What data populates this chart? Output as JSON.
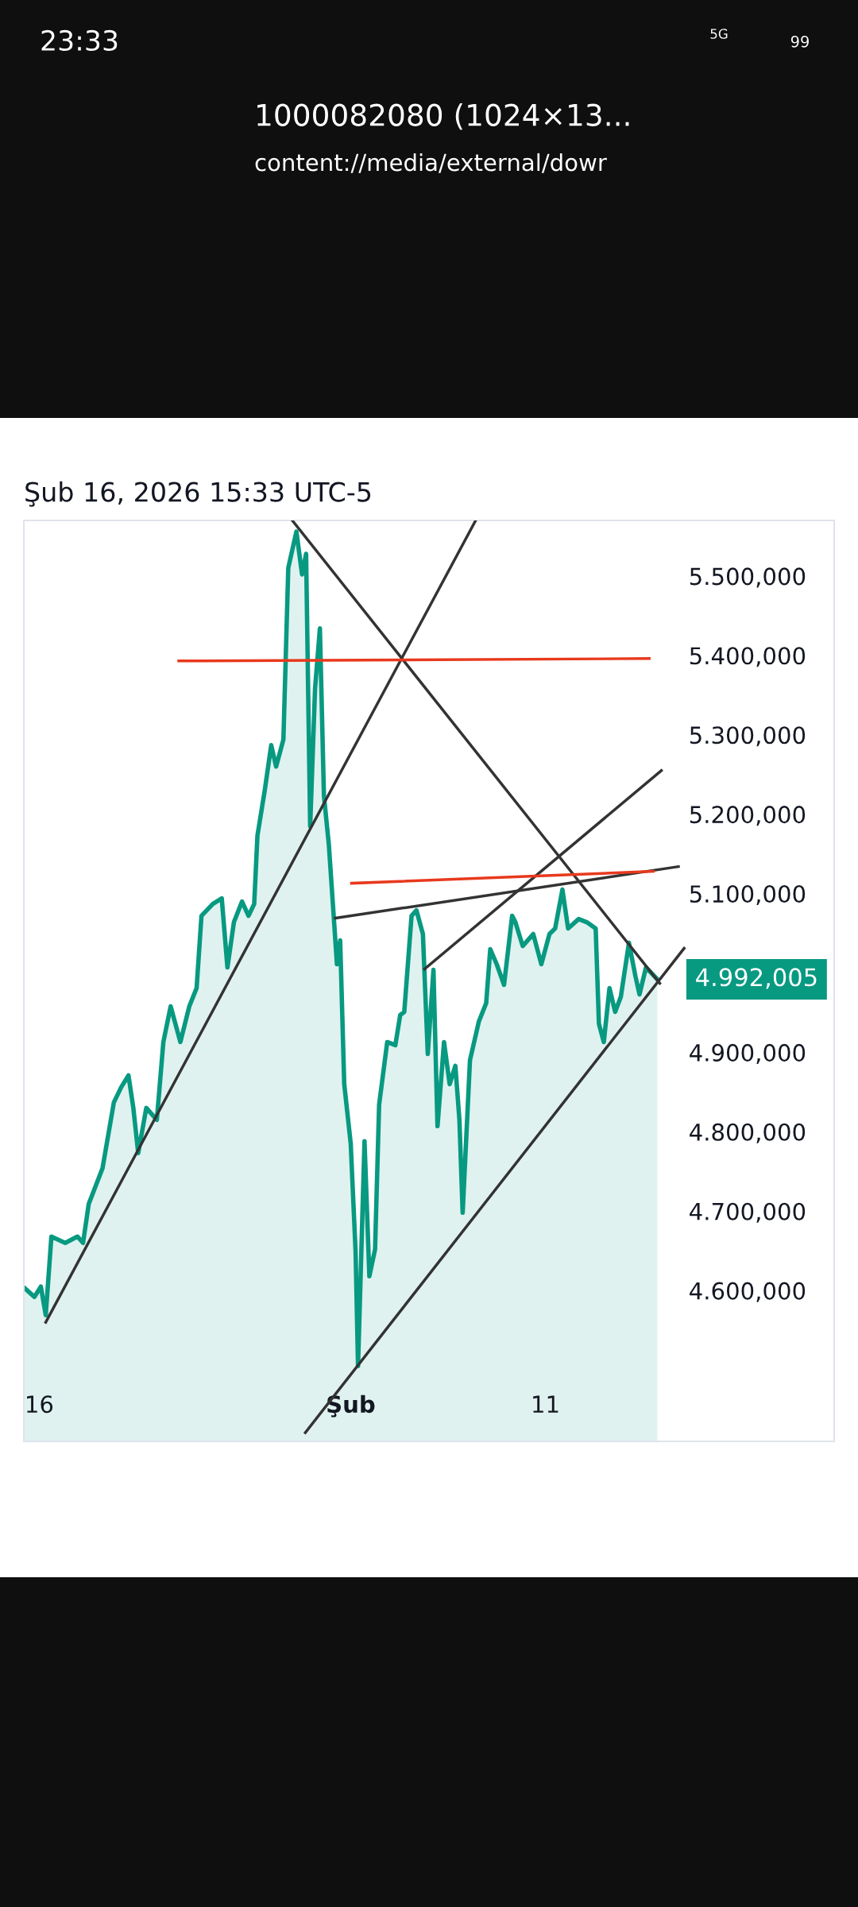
{
  "chart_data": {
    "type": "area",
    "subtitle": "Şub 16, 2026 15:33 UTC-5",
    "annotations": [
      "23:33",
      "1000082080 (1024×13...",
      "content://media/external/dowr",
      "5G",
      "99",
      {
        "text": "4.992,005",
        "x": "2026-02-16T18:00",
        "y": 4992.005
      }
    ],
    "xlim": [
      "2026-01-15T05:00",
      "2026-02-25T20:00"
    ],
    "xticks": [
      {
        "value": "2026-01-16",
        "label": "16"
      },
      {
        "value": "2026-02-01",
        "label": "Şub"
      },
      {
        "value": "2026-02-11",
        "label": "11"
      }
    ],
    "ylim": [
      4410,
      5570
    ],
    "yticks": [
      {
        "value": 4600,
        "label": "4.600,000"
      },
      {
        "value": 4700,
        "label": "4.700,000"
      },
      {
        "value": 4800,
        "label": "4.800,000"
      },
      {
        "value": 4900,
        "label": "4.900,000"
      },
      {
        "value": 5100,
        "label": "5.100,000"
      },
      {
        "value": 5200,
        "label": "5.200,000"
      },
      {
        "value": 5300,
        "label": "5.300,000"
      },
      {
        "value": 5400,
        "label": "5.400,000"
      },
      {
        "value": 5500,
        "label": "5.500,000"
      }
    ],
    "tick_labels": "xy",
    "series": [
      {
        "color": "#089981",
        "x": [
          "2026-01-15T06:00",
          "2026-01-15T18:00",
          "2026-01-16T02:00",
          "2026-01-16T08:00",
          "2026-01-16T15:00",
          "2026-01-17T08:00",
          "2026-01-17T23:00",
          "2026-01-18T06:00",
          "2026-01-18T13:00",
          "2026-01-19T06:00",
          "2026-01-19T20:00",
          "2026-01-20T05:00",
          "2026-01-20T14:00",
          "2026-01-20T20:00",
          "2026-01-21T02:00",
          "2026-01-21T12:00",
          "2026-01-22T01:00",
          "2026-01-22T09:00",
          "2026-01-22T18:00",
          "2026-01-23T06:00",
          "2026-01-23T17:00",
          "2026-01-24T02:00",
          "2026-01-24T08:00",
          "2026-01-24T22:00",
          "2026-01-25T09:00",
          "2026-01-25T16:00",
          "2026-01-26T00:00",
          "2026-01-26T10:00",
          "2026-01-26T18:00",
          "2026-01-27T01:00",
          "2026-01-27T05:00",
          "2026-01-27T14:00",
          "2026-01-27T22:00",
          "2026-01-28T04:00",
          "2026-01-28T13:00",
          "2026-01-28T19:00",
          "2026-01-29T05:00",
          "2026-01-29T12:00",
          "2026-01-29T17:00",
          "2026-01-29T22:00",
          "2026-01-30T04:00",
          "2026-01-30T10:00",
          "2026-01-30T15:00",
          "2026-01-30T21:00",
          "2026-01-31T03:00",
          "2026-01-31T07:00",
          "2026-01-31T11:00",
          "2026-01-31T16:00",
          "2026-02-01T00:00",
          "2026-02-01T06:00",
          "2026-02-01T09:00",
          "2026-02-01T17:00",
          "2026-02-01T23:00",
          "2026-02-02T06:00",
          "2026-02-02T11:00",
          "2026-02-02T21:00",
          "2026-02-03T07:00",
          "2026-02-03T13:00",
          "2026-02-03T18:00",
          "2026-02-04T03:00",
          "2026-02-04T09:00",
          "2026-02-04T17:00",
          "2026-02-04T23:00",
          "2026-02-05T06:00",
          "2026-02-05T11:00",
          "2026-02-05T19:00",
          "2026-02-06T02:00",
          "2026-02-06T09:00",
          "2026-02-06T14:00",
          "2026-02-06T18:00",
          "2026-02-07T03:00",
          "2026-02-07T14:00",
          "2026-02-07T23:00",
          "2026-02-08T04:00",
          "2026-02-08T12:00",
          "2026-02-08T21:00",
          "2026-02-09T07:00",
          "2026-02-09T11:00",
          "2026-02-09T20:00",
          "2026-02-10T09:00",
          "2026-02-10T19:00",
          "2026-02-11T05:00",
          "2026-02-11T12:00",
          "2026-02-11T21:00",
          "2026-02-12T04:00",
          "2026-02-12T17:00",
          "2026-02-13T03:00",
          "2026-02-13T14:00",
          "2026-02-13T18:00",
          "2026-02-14T00:00",
          "2026-02-14T07:00",
          "2026-02-14T14:00",
          "2026-02-14T21:00",
          "2026-02-15T07:00",
          "2026-02-15T15:00",
          "2026-02-15T20:00",
          "2026-02-16T04:00",
          "2026-02-16T18:00"
        ],
        "values": [
          4603,
          4592,
          4605,
          4569,
          4668,
          4660,
          4668,
          4660,
          4709,
          4754,
          4837,
          4856,
          4871,
          4830,
          4773,
          4830,
          4815,
          4913,
          4958,
          4913,
          4958,
          4981,
          5072,
          5087,
          5094,
          5007,
          5064,
          5090,
          5072,
          5087,
          5173,
          5230,
          5287,
          5260,
          5294,
          5510,
          5556,
          5502,
          5528,
          5185,
          5358,
          5434,
          5223,
          5162,
          5072,
          5011,
          5041,
          4860,
          4785,
          4649,
          4505,
          4788,
          4618,
          4652,
          4834,
          4913,
          4909,
          4947,
          4951,
          5072,
          5079,
          5049,
          4898,
          5004,
          4807,
          4913,
          4860,
          4883,
          4815,
          4698,
          4890,
          4939,
          4962,
          5030,
          5011,
          4985,
          5072,
          5064,
          5034,
          5049,
          5011,
          5049,
          5056,
          5105,
          5056,
          5068,
          5064,
          5056,
          4936,
          4913,
          4981,
          4951,
          4970,
          5038,
          4996,
          4973,
          5007,
          4992
        ]
      },
      {
        "type": "line",
        "color": "#333333",
        "x": [
          "2026-01-29T00:00",
          "2026-02-16T21:00"
        ],
        "values": [
          5570,
          4987
        ]
      },
      {
        "type": "line",
        "color": "#333333",
        "x": [
          "2026-01-16T08:00",
          "2026-02-07T10:00"
        ],
        "values": [
          4560,
          5570
        ]
      },
      {
        "type": "line",
        "color": "#333333",
        "x": [
          "2026-01-29T16:00",
          "2026-02-18T03:00"
        ],
        "values": [
          4421,
          5031
        ]
      },
      {
        "type": "line",
        "color": "#333333",
        "x": [
          "2026-02-04T19:00",
          "2026-02-16T23:00"
        ],
        "values": [
          5005,
          5255
        ]
      },
      {
        "type": "line",
        "color": "#333333",
        "x": [
          "2026-01-31T05:00",
          "2026-02-17T20:00"
        ],
        "values": [
          5069,
          5134
        ]
      },
      {
        "type": "line",
        "color": "#e8391d",
        "x": [
          "2026-01-23T04:00",
          "2026-02-16T08:00"
        ],
        "values": [
          5393,
          5396
        ]
      },
      {
        "type": "line",
        "color": "#e8391d",
        "x": [
          "2026-02-01T01:00",
          "2026-02-16T13:00"
        ],
        "values": [
          5113,
          5128
        ]
      }
    ]
  }
}
